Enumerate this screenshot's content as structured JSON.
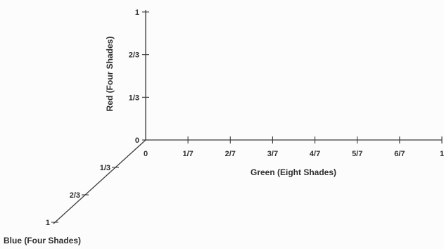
{
  "diagram": {
    "red_axis": {
      "title": "Red (Four Shades)",
      "ticks": [
        "0",
        "1/3",
        "2/3",
        "1"
      ]
    },
    "green_axis": {
      "title": "Green (Eight Shades)",
      "ticks": [
        "0",
        "1/7",
        "2/7",
        "3/7",
        "4/7",
        "5/7",
        "6/7",
        "1"
      ]
    },
    "blue_axis": {
      "title": "Blue (Four Shades)",
      "ticks": [
        "0",
        "1/3",
        "2/3",
        "1"
      ]
    }
  }
}
